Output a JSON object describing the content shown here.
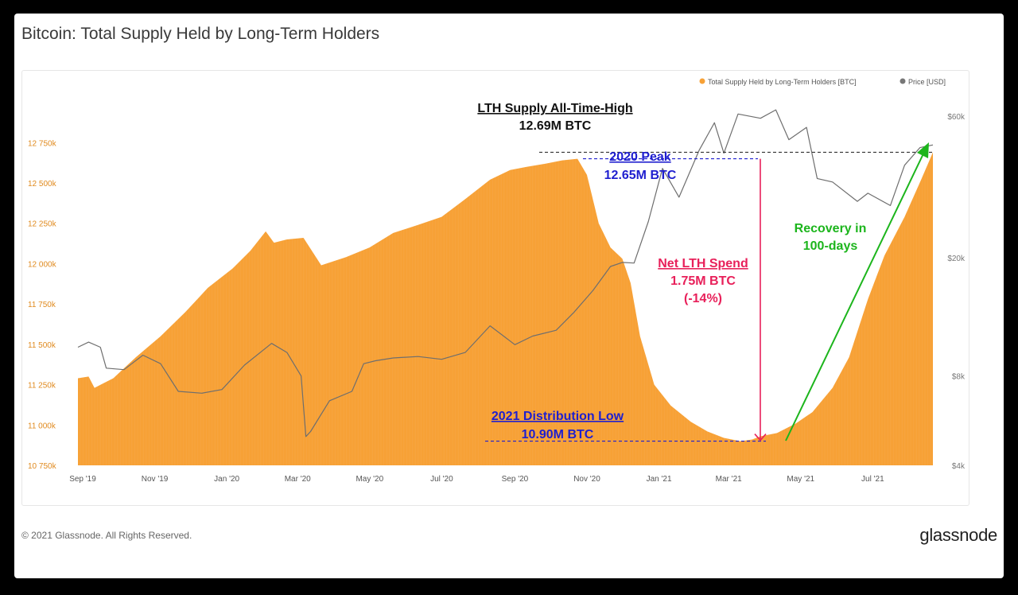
{
  "title": "Bitcoin: Total Supply Held by Long-Term Holders",
  "footer": {
    "copyright": "© 2021 Glassnode. All Rights Reserved.",
    "logo": "glassnode"
  },
  "watermark": "glassnode",
  "colors": {
    "supply": "#f7a136",
    "price": "#6e6e6e",
    "ath_line": "#333333",
    "peak": "#1f1fcf",
    "spend": "#e8205a",
    "recovery": "#1cb51c"
  },
  "chart_data": {
    "type": "area",
    "x_ticks": [
      "Sep '19",
      "Nov '19",
      "Jan '20",
      "Mar '20",
      "May '20",
      "Jul '20",
      "Sep '20",
      "Nov '20",
      "Jan '21",
      "Mar '21",
      "May '21",
      "Jul '21"
    ],
    "y_left": {
      "ticks": [
        10750,
        11000,
        11250,
        11500,
        11750,
        12000,
        12250,
        12500,
        12750
      ],
      "tick_labels": [
        "10 750k",
        "11 000k",
        "11 250k",
        "11 500k",
        "11 750k",
        "12 000k",
        "12 250k",
        "12 500k",
        "12 750k"
      ],
      "ylim": [
        10750,
        12850
      ]
    },
    "y_right": {
      "scale": "log",
      "ticks": [
        4000,
        8000,
        20000,
        60000
      ],
      "tick_labels": [
        "$4k",
        "$8k",
        "$20k",
        "$60k"
      ]
    },
    "legend": {
      "placement": "top-right",
      "entries": [
        "Total Supply Held by Long-Term Holders [BTC]",
        "Price [USD]"
      ]
    },
    "series": [
      {
        "name": "Total Supply Held by Long-Term Holders [BTC]",
        "x": [
          "2019-09-01",
          "2019-09-10",
          "2019-09-15",
          "2019-10-01",
          "2019-10-20",
          "2019-11-10",
          "2019-12-01",
          "2019-12-20",
          "2020-01-10",
          "2020-01-25",
          "2020-02-07",
          "2020-02-14",
          "2020-02-25",
          "2020-03-10",
          "2020-03-25",
          "2020-04-15",
          "2020-05-05",
          "2020-05-25",
          "2020-06-15",
          "2020-07-05",
          "2020-07-25",
          "2020-08-15",
          "2020-09-01",
          "2020-09-15",
          "2020-10-01",
          "2020-10-15",
          "2020-10-28",
          "2020-11-05",
          "2020-11-15",
          "2020-11-25",
          "2020-12-05",
          "2020-12-12",
          "2020-12-20",
          "2021-01-01",
          "2021-01-15",
          "2021-02-01",
          "2021-02-15",
          "2021-03-01",
          "2021-03-15",
          "2021-03-25",
          "2021-04-01",
          "2021-04-15",
          "2021-05-01",
          "2021-05-15",
          "2021-06-01",
          "2021-06-15",
          "2021-07-01",
          "2021-07-15",
          "2021-08-01",
          "2021-08-15",
          "2021-08-25"
        ],
        "values": [
          11290,
          11300,
          11230,
          11290,
          11420,
          11550,
          11700,
          11850,
          11970,
          12080,
          12200,
          12130,
          12150,
          12160,
          11990,
          12040,
          12100,
          12190,
          12240,
          12290,
          12400,
          12520,
          12580,
          12600,
          12620,
          12640,
          12650,
          12550,
          12250,
          12100,
          12030,
          11880,
          11550,
          11250,
          11120,
          11020,
          10960,
          10920,
          10900,
          10910,
          10930,
          10950,
          11010,
          11080,
          11230,
          11420,
          11780,
          12050,
          12290,
          12520,
          12690
        ]
      },
      {
        "name": "Price [USD]",
        "x": [
          "2019-09-01",
          "2019-09-10",
          "2019-09-20",
          "2019-09-25",
          "2019-10-10",
          "2019-10-26",
          "2019-11-10",
          "2019-11-25",
          "2019-12-15",
          "2020-01-01",
          "2020-01-20",
          "2020-02-12",
          "2020-02-25",
          "2020-03-08",
          "2020-03-12",
          "2020-03-16",
          "2020-04-01",
          "2020-04-20",
          "2020-04-30",
          "2020-05-10",
          "2020-05-25",
          "2020-06-15",
          "2020-07-05",
          "2020-07-25",
          "2020-08-15",
          "2020-09-05",
          "2020-09-20",
          "2020-10-10",
          "2020-10-25",
          "2020-11-10",
          "2020-11-25",
          "2020-12-05",
          "2020-12-15",
          "2020-12-27",
          "2021-01-08",
          "2021-01-22",
          "2021-02-08",
          "2021-02-21",
          "2021-03-01",
          "2021-03-13",
          "2021-04-01",
          "2021-04-14",
          "2021-04-25",
          "2021-05-10",
          "2021-05-19",
          "2021-06-01",
          "2021-06-22",
          "2021-07-01",
          "2021-07-20",
          "2021-08-01",
          "2021-08-14",
          "2021-08-25"
        ],
        "values": [
          10000,
          10400,
          10000,
          8500,
          8400,
          9400,
          8800,
          7100,
          7000,
          7200,
          8700,
          10300,
          9600,
          8000,
          5000,
          5200,
          6600,
          7100,
          8800,
          9000,
          9200,
          9300,
          9100,
          9600,
          11800,
          10200,
          10900,
          11400,
          13100,
          15500,
          18700,
          19300,
          19200,
          26500,
          40000,
          32000,
          46000,
          57000,
          45000,
          61000,
          59000,
          63000,
          50000,
          55000,
          37000,
          36000,
          31000,
          33000,
          30000,
          41000,
          47000,
          48000
        ]
      }
    ],
    "annotations": [
      {
        "name": "lth-ath",
        "lines": [
          "LTH Supply All-Time-High",
          "12.69M BTC"
        ],
        "value": 12690
      },
      {
        "name": "peak-2020",
        "lines": [
          "2020 Peak",
          "12.65M BTC"
        ],
        "value": 12650
      },
      {
        "name": "low-2021",
        "lines": [
          "2021 Distribution Low",
          "10.90M BTC"
        ],
        "value": 10900
      },
      {
        "name": "net-spend",
        "lines": [
          "Net LTH Spend",
          "1.75M BTC",
          "(-14%)"
        ]
      },
      {
        "name": "recovery",
        "lines": [
          "Recovery in",
          "100-days"
        ]
      }
    ]
  }
}
